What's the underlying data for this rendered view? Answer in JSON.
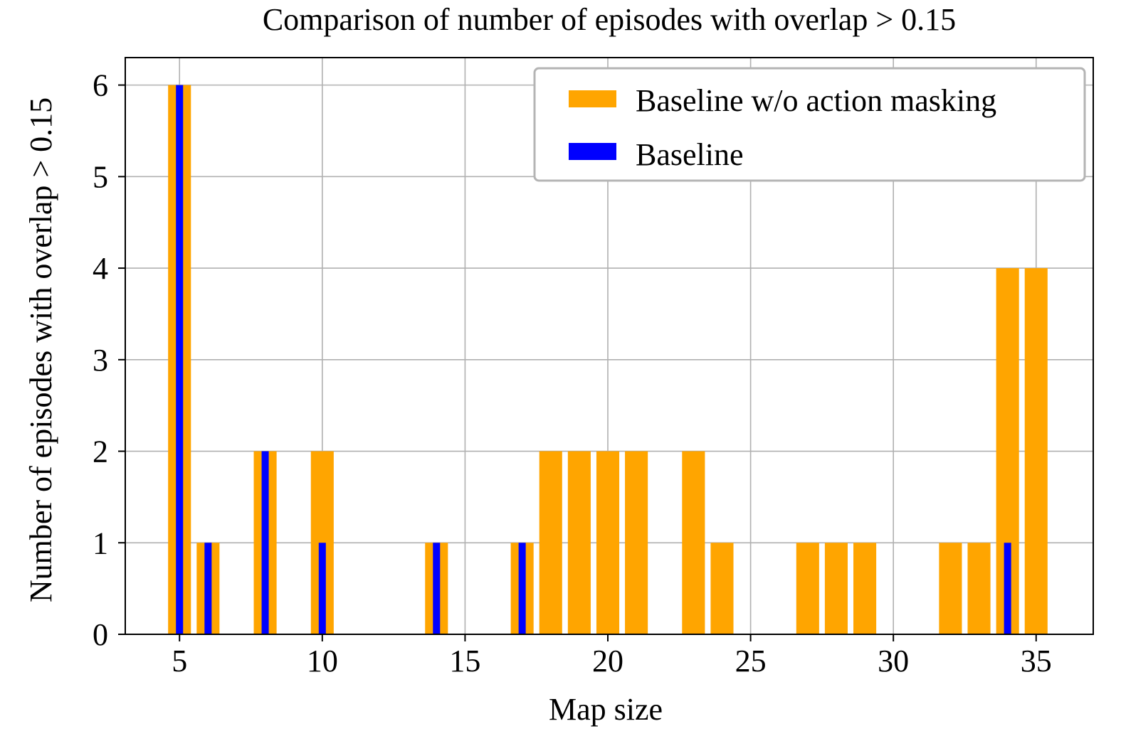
{
  "chart_data": {
    "type": "bar",
    "title": "Comparison of number of episodes with overlap > 0.15",
    "xlabel": "Map size",
    "ylabel": "Number of episodes with overlap > 0.15",
    "xlim": [
      3.1,
      37
    ],
    "ylim": [
      0,
      6.3
    ],
    "xticks": [
      5,
      10,
      15,
      20,
      25,
      30,
      35
    ],
    "yticks": [
      0,
      1,
      2,
      3,
      4,
      5,
      6
    ],
    "xtick_labels": [
      "5",
      "10",
      "15",
      "20",
      "25",
      "30",
      "35"
    ],
    "ytick_labels": [
      "0",
      "1",
      "2",
      "3",
      "4",
      "5",
      "6"
    ],
    "grid": true,
    "legend_position": "upper right",
    "series": [
      {
        "name": "Baseline w/o action masking",
        "color": "#FFA500",
        "bar_width": 0.8,
        "x": [
          5,
          6,
          8,
          10,
          14,
          17,
          18,
          19,
          20,
          21,
          23,
          24,
          27,
          28,
          29,
          32,
          33,
          34,
          35
        ],
        "values": [
          6,
          1,
          2,
          2,
          1,
          1,
          2,
          2,
          2,
          2,
          2,
          1,
          1,
          1,
          1,
          1,
          1,
          4,
          4
        ]
      },
      {
        "name": "Baseline",
        "color": "#0000FF",
        "bar_width": 0.25,
        "x": [
          5,
          6,
          8,
          10,
          14,
          17,
          34
        ],
        "values": [
          6,
          1,
          2,
          1,
          1,
          1,
          1
        ]
      }
    ]
  }
}
